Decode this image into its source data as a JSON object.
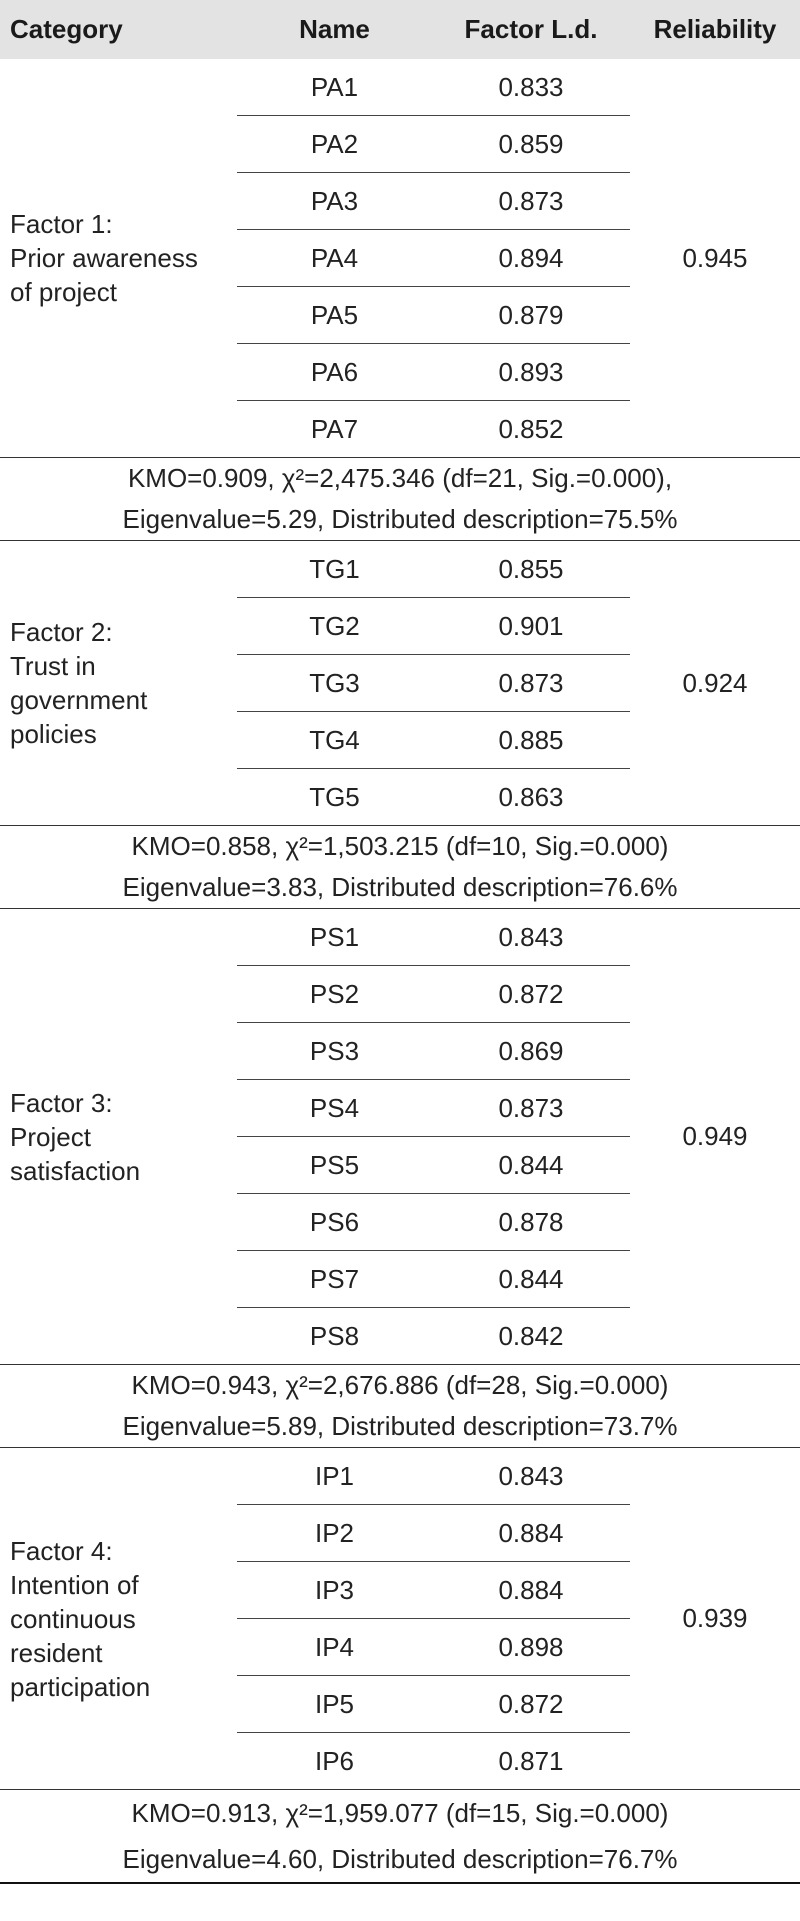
{
  "header": {
    "category": "Category",
    "name": "Name",
    "factor_ld": "Factor L.d.",
    "reliability": "Reliability"
  },
  "factors": [
    {
      "category": "Factor 1:\nPrior awareness\nof project",
      "reliability": "0.945",
      "items": [
        {
          "name": "PA1",
          "ld": "0.833"
        },
        {
          "name": "PA2",
          "ld": "0.859"
        },
        {
          "name": "PA3",
          "ld": "0.873"
        },
        {
          "name": "PA4",
          "ld": "0.894"
        },
        {
          "name": "PA5",
          "ld": "0.879"
        },
        {
          "name": "PA6",
          "ld": "0.893"
        },
        {
          "name": "PA7",
          "ld": "0.852"
        }
      ],
      "stats": [
        "KMO=0.909, χ²=2,475.346 (df=21, Sig.=0.000),",
        "Eigenvalue=5.29, Distributed description=75.5%"
      ]
    },
    {
      "category": "Factor 2:\nTrust in\ngovernment\npolicies",
      "reliability": "0.924",
      "items": [
        {
          "name": "TG1",
          "ld": "0.855"
        },
        {
          "name": "TG2",
          "ld": "0.901"
        },
        {
          "name": "TG3",
          "ld": "0.873"
        },
        {
          "name": "TG4",
          "ld": "0.885"
        },
        {
          "name": "TG5",
          "ld": "0.863"
        }
      ],
      "stats": [
        "KMO=0.858, χ²=1,503.215 (df=10, Sig.=0.000)",
        "Eigenvalue=3.83, Distributed description=76.6%"
      ]
    },
    {
      "category": "Factor 3:\nProject\nsatisfaction",
      "reliability": "0.949",
      "items": [
        {
          "name": "PS1",
          "ld": "0.843"
        },
        {
          "name": "PS2",
          "ld": "0.872"
        },
        {
          "name": "PS3",
          "ld": "0.869"
        },
        {
          "name": "PS4",
          "ld": "0.873"
        },
        {
          "name": "PS5",
          "ld": "0.844"
        },
        {
          "name": "PS6",
          "ld": "0.878"
        },
        {
          "name": "PS7",
          "ld": "0.844"
        },
        {
          "name": "PS8",
          "ld": "0.842"
        }
      ],
      "stats": [
        "KMO=0.943, χ²=2,676.886 (df=28, Sig.=0.000)",
        "Eigenvalue=5.89, Distributed description=73.7%"
      ]
    },
    {
      "category": "Factor 4:\nIntention of\ncontinuous\nresident\nparticipation",
      "reliability": "0.939",
      "items": [
        {
          "name": "IP1",
          "ld": "0.843"
        },
        {
          "name": "IP2",
          "ld": "0.884"
        },
        {
          "name": "IP3",
          "ld": "0.884"
        },
        {
          "name": "IP4",
          "ld": "0.898"
        },
        {
          "name": "IP5",
          "ld": "0.872"
        },
        {
          "name": "IP6",
          "ld": "0.871"
        }
      ],
      "stats": [
        "KMO=0.913, χ²=1,959.077 (df=15, Sig.=0.000)",
        "Eigenvalue=4.60, Distributed description=76.7%"
      ]
    }
  ]
}
